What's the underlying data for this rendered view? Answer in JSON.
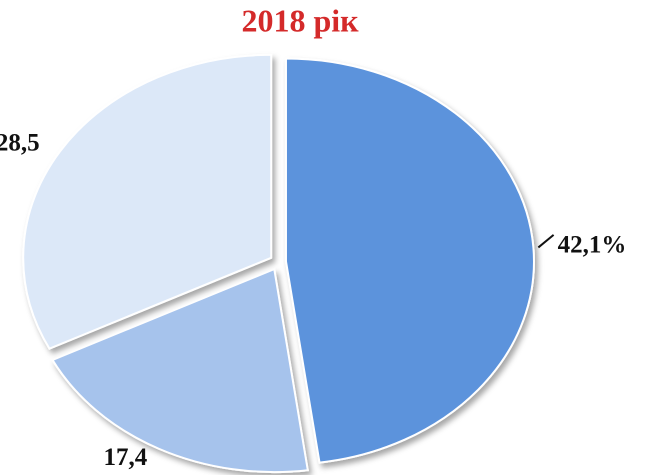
{
  "chart_data": {
    "type": "pie",
    "title": "2018 рік",
    "values": [
      42.1,
      17.4,
      28.5
    ],
    "value_labels": [
      "42,1%",
      "17,4",
      "28,5"
    ],
    "colors": [
      "#5b93dc",
      "#a6c3ec",
      "#dce8f8"
    ]
  }
}
